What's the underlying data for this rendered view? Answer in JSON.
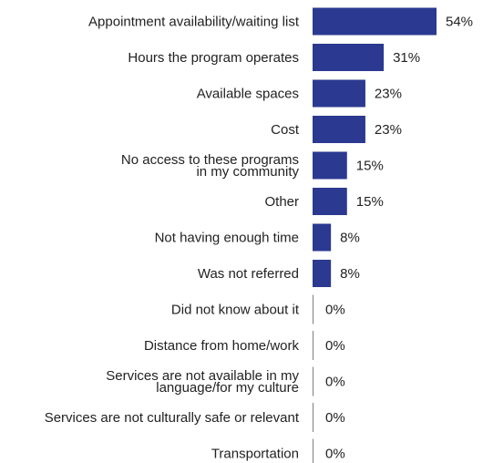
{
  "chart_data": {
    "type": "bar",
    "orientation": "horizontal",
    "categories": [
      [
        "Appointment availability/waiting list"
      ],
      [
        "Hours the program operates"
      ],
      [
        "Available spaces"
      ],
      [
        "Cost"
      ],
      [
        "No access to these programs",
        "in my community"
      ],
      [
        "Other"
      ],
      [
        "Not having enough time"
      ],
      [
        "Was not referred"
      ],
      [
        "Did not know about it"
      ],
      [
        "Distance from home/work"
      ],
      [
        "Services are not available in my",
        "language/for my culture"
      ],
      [
        "Services are not culturally safe or relevant"
      ],
      [
        "Transportation"
      ]
    ],
    "values": [
      54,
      31,
      23,
      23,
      15,
      15,
      8,
      8,
      0,
      0,
      0,
      0,
      0
    ],
    "value_labels": [
      "54%",
      "31%",
      "23%",
      "23%",
      "15%",
      "15%",
      "8%",
      "8%",
      "0%",
      "0%",
      "0%",
      "0%",
      "0%"
    ],
    "unit": "%",
    "xlim": [
      0,
      54
    ],
    "bar_color": "#2b3990",
    "axis_color": "#7f7f7f",
    "grid": false,
    "legend": "none"
  }
}
